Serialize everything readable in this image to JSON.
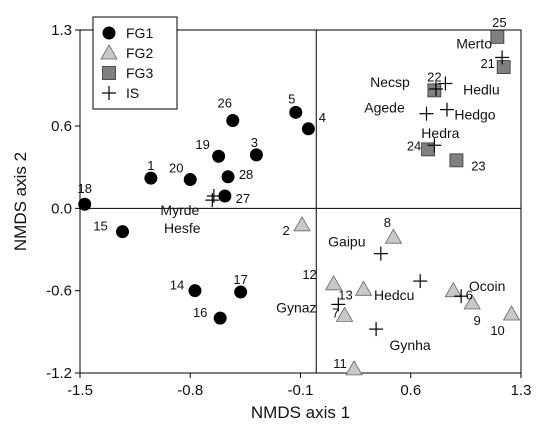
{
  "chart_data": {
    "type": "scatter",
    "xlabel": "NMDS axis 1",
    "ylabel": "NMDS axis 2",
    "xlim": [
      -1.5,
      1.3
    ],
    "ylim": [
      -1.2,
      1.3
    ],
    "xticks": [
      "-1.5",
      "-0.8",
      "-0.1",
      "0.6",
      "1.3"
    ],
    "yticks": [
      "-1.2",
      "-0.6",
      "0.0",
      "0.6",
      "1.3"
    ],
    "grid": false,
    "zero_lines": true,
    "legend_position": "top-left",
    "colors": {
      "FG1": "#000000",
      "FG2": "#c8c8c8",
      "FG3": "#808080",
      "IS": "#000000"
    },
    "series": [
      {
        "name": "FG1",
        "marker": "circle",
        "points": [
          {
            "label": "1",
            "x": -1.05,
            "y": 0.22
          },
          {
            "label": "3",
            "x": -0.38,
            "y": 0.39
          },
          {
            "label": "4",
            "x": -0.05,
            "y": 0.58
          },
          {
            "label": "5",
            "x": -0.13,
            "y": 0.7
          },
          {
            "label": "14",
            "x": -0.77,
            "y": -0.6
          },
          {
            "label": "15",
            "x": -1.23,
            "y": -0.17
          },
          {
            "label": "16",
            "x": -0.61,
            "y": -0.8
          },
          {
            "label": "17",
            "x": -0.48,
            "y": -0.61
          },
          {
            "label": "18",
            "x": -1.47,
            "y": 0.03
          },
          {
            "label": "19",
            "x": -0.62,
            "y": 0.38
          },
          {
            "label": "20",
            "x": -0.8,
            "y": 0.21
          },
          {
            "label": "26",
            "x": -0.53,
            "y": 0.64
          },
          {
            "label": "27",
            "x": -0.58,
            "y": 0.09
          },
          {
            "label": "28",
            "x": -0.56,
            "y": 0.23
          }
        ]
      },
      {
        "name": "FG2",
        "marker": "triangle",
        "points": [
          {
            "label": "2",
            "x": -0.09,
            "y": -0.12
          },
          {
            "label": "6",
            "x": 0.87,
            "y": -0.6
          },
          {
            "label": "7",
            "x": 0.18,
            "y": -0.78
          },
          {
            "label": "8",
            "x": 0.49,
            "y": -0.21
          },
          {
            "label": "9",
            "x": 0.99,
            "y": -0.69
          },
          {
            "label": "10",
            "x": 1.24,
            "y": -0.77
          },
          {
            "label": "11",
            "x": 0.24,
            "y": -1.17
          },
          {
            "label": "12",
            "x": 0.11,
            "y": -0.55
          },
          {
            "label": "13",
            "x": 0.3,
            "y": -0.59
          }
        ]
      },
      {
        "name": "FG3",
        "marker": "square",
        "points": [
          {
            "label": "21",
            "x": 1.19,
            "y": 1.03
          },
          {
            "label": "22",
            "x": 0.75,
            "y": 0.86
          },
          {
            "label": "23",
            "x": 0.89,
            "y": 0.35
          },
          {
            "label": "24",
            "x": 0.71,
            "y": 0.43
          },
          {
            "label": "25",
            "x": 1.15,
            "y": 1.25
          }
        ]
      },
      {
        "name": "IS",
        "marker": "plus",
        "points": [
          {
            "label": "Merto",
            "x": 1.18,
            "y": 1.1
          },
          {
            "label": "Hedlu",
            "x": 0.82,
            "y": 0.91
          },
          {
            "label": "Necsp",
            "x": 0.76,
            "y": 0.87
          },
          {
            "label": "Hedgo",
            "x": 0.83,
            "y": 0.72
          },
          {
            "label": "Agede",
            "x": 0.7,
            "y": 0.69
          },
          {
            "label": "Hedra",
            "x": 0.75,
            "y": 0.46
          },
          {
            "label": "Myrde",
            "x": -0.65,
            "y": 0.09
          },
          {
            "label": "Hesfe",
            "x": -0.66,
            "y": 0.06
          },
          {
            "label": "Gaipu",
            "x": 0.41,
            "y": -0.33
          },
          {
            "label": "Hedcu",
            "x": 0.66,
            "y": -0.53
          },
          {
            "label": "Ocoin",
            "x": 0.92,
            "y": -0.64
          },
          {
            "label": "Gynaz",
            "x": 0.14,
            "y": -0.7
          },
          {
            "label": "Gynha",
            "x": 0.38,
            "y": -0.88
          }
        ]
      }
    ]
  }
}
